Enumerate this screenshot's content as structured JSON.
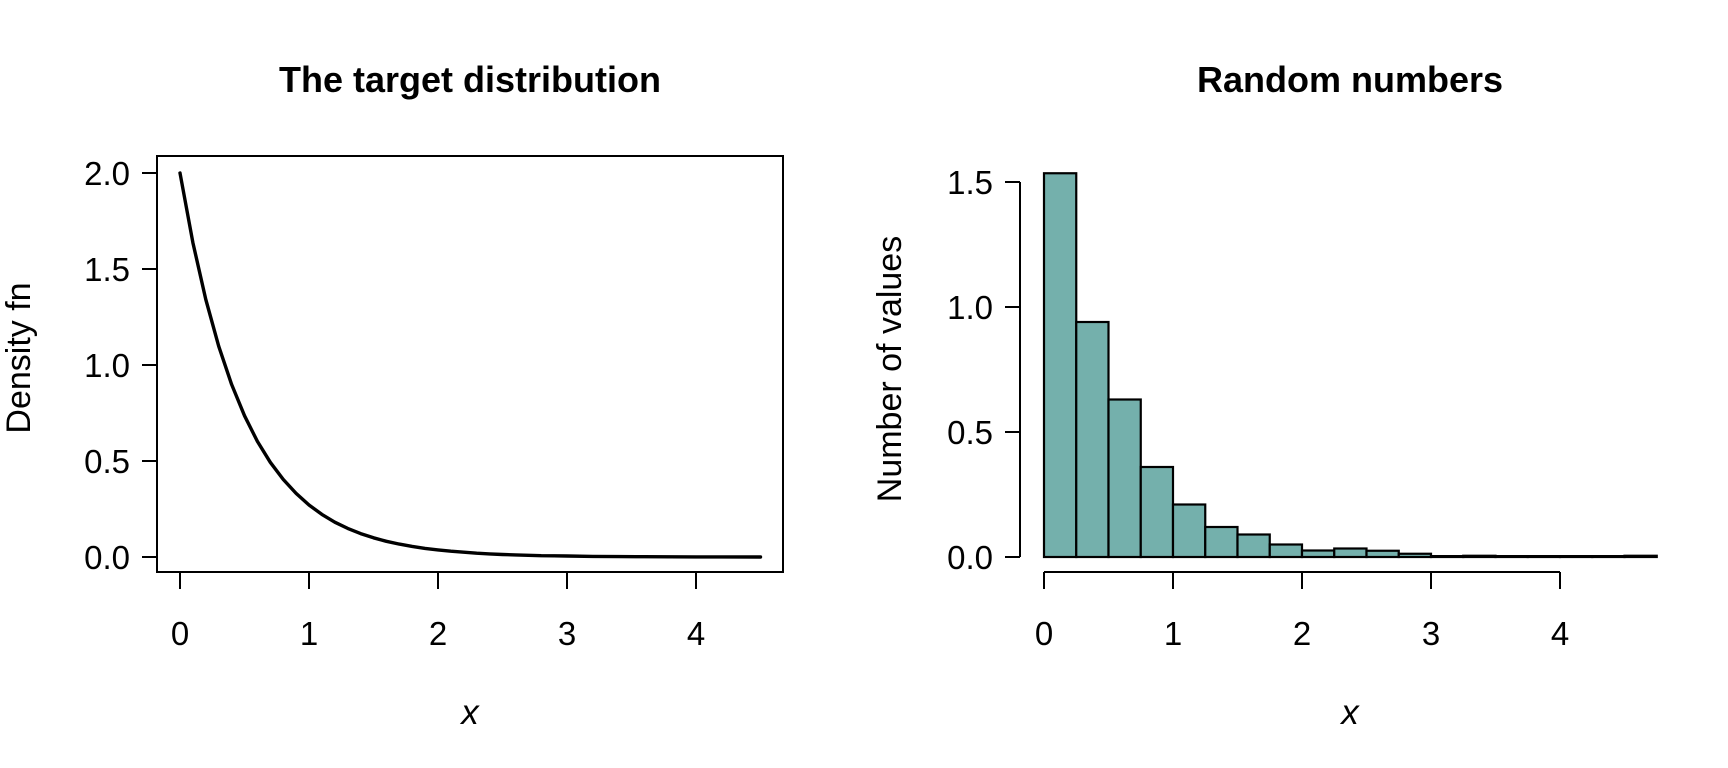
{
  "figure": {
    "background": "#ffffff",
    "text_color": "#000000"
  },
  "chart_data": [
    {
      "type": "line",
      "title": "The target distribution",
      "xlabel": "x",
      "ylabel": "Density fn",
      "x_ticks": [
        0,
        1,
        2,
        3,
        4
      ],
      "x_tick_labels": [
        "0",
        "1",
        "2",
        "3",
        "4"
      ],
      "y_ticks": [
        0.0,
        0.5,
        1.0,
        1.5,
        2.0
      ],
      "y_tick_labels": [
        "0.0",
        "0.5",
        "1.0",
        "1.5",
        "2.0"
      ],
      "xlim": [
        -0.18,
        4.68
      ],
      "ylim": [
        -0.08,
        2.08
      ],
      "grid": false,
      "frame_box": true,
      "line_color": "#000000",
      "line_width": 3.4,
      "points": [
        [
          0.0,
          2.0
        ],
        [
          0.1,
          1.637
        ],
        [
          0.2,
          1.341
        ],
        [
          0.3,
          1.098
        ],
        [
          0.4,
          0.899
        ],
        [
          0.5,
          0.736
        ],
        [
          0.6,
          0.602
        ],
        [
          0.7,
          0.493
        ],
        [
          0.8,
          0.404
        ],
        [
          0.9,
          0.331
        ],
        [
          1.0,
          0.271
        ],
        [
          1.1,
          0.222
        ],
        [
          1.2,
          0.181
        ],
        [
          1.3,
          0.149
        ],
        [
          1.4,
          0.122
        ],
        [
          1.5,
          0.1
        ],
        [
          1.6,
          0.082
        ],
        [
          1.7,
          0.067
        ],
        [
          1.8,
          0.055
        ],
        [
          1.9,
          0.045
        ],
        [
          2.0,
          0.037
        ],
        [
          2.1,
          0.03
        ],
        [
          2.2,
          0.025
        ],
        [
          2.3,
          0.02
        ],
        [
          2.4,
          0.016
        ],
        [
          2.5,
          0.013
        ],
        [
          2.6,
          0.011
        ],
        [
          2.7,
          0.009
        ],
        [
          2.8,
          0.007
        ],
        [
          2.9,
          0.006
        ],
        [
          3.0,
          0.005
        ],
        [
          3.2,
          0.003
        ],
        [
          3.4,
          0.002
        ],
        [
          3.6,
          0.0015
        ],
        [
          3.8,
          0.001
        ],
        [
          4.0,
          0.0007
        ],
        [
          4.2,
          0.0004
        ],
        [
          4.5,
          0.0002
        ]
      ]
    },
    {
      "type": "bar",
      "subtype": "histogram",
      "title": "Random numbers",
      "xlabel": "x",
      "ylabel": "Number of values",
      "x_ticks": [
        0,
        1,
        2,
        3,
        4
      ],
      "x_tick_labels": [
        "0",
        "1",
        "2",
        "3",
        "4"
      ],
      "y_ticks": [
        0.0,
        0.5,
        1.0,
        1.5
      ],
      "y_tick_labels": [
        "0.0",
        "0.5",
        "1.0",
        "1.5"
      ],
      "xlim": [
        -0.19,
        4.94
      ],
      "ylim": [
        -0.06,
        1.55
      ],
      "grid": false,
      "frame_box": false,
      "bin_start": 0,
      "bin_width": 0.25,
      "densities": [
        1.535,
        0.94,
        0.63,
        0.36,
        0.21,
        0.12,
        0.09,
        0.05,
        0.026,
        0.034,
        0.025,
        0.013,
        0,
        0.005,
        0,
        0,
        0,
        0,
        0.005
      ],
      "bar_fill": "#74b0ac",
      "bar_stroke": "#000000"
    }
  ]
}
